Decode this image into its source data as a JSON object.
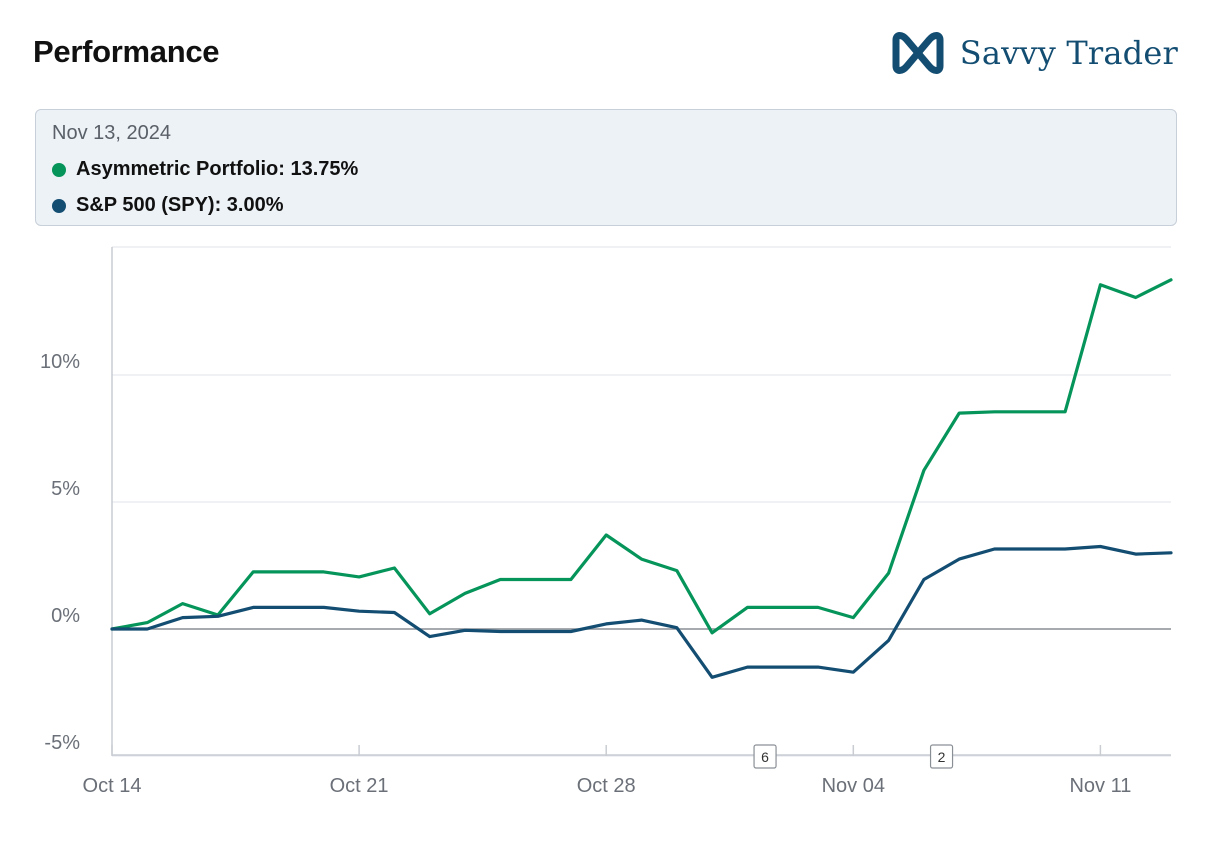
{
  "header": {
    "title": "Performance"
  },
  "brand": {
    "name": "Savvy Trader",
    "logo_icon": "savvy-trader-logo-icon",
    "color": "#134d72"
  },
  "tooltip": {
    "date": "Nov 13, 2024",
    "rows": [
      {
        "label": "Asymmetric Portfolio: 13.75%",
        "color": "#05945a"
      },
      {
        "label": "S&P 500 (SPY): 3.00%",
        "color": "#134d72"
      }
    ]
  },
  "chart_data": {
    "type": "line",
    "title": "Performance",
    "xlabel": "",
    "ylabel": "",
    "ylim": [
      -5,
      15
    ],
    "xlim": [
      0,
      30
    ],
    "y_ticks": [
      {
        "value": -5,
        "label": "-5%"
      },
      {
        "value": 0,
        "label": "0%"
      },
      {
        "value": 5,
        "label": "5%"
      },
      {
        "value": 10,
        "label": "10%"
      }
    ],
    "x_ticks": [
      {
        "value": 0,
        "label": "Oct 14"
      },
      {
        "value": 7,
        "label": "Oct 21"
      },
      {
        "value": 14,
        "label": "Oct 28"
      },
      {
        "value": 21,
        "label": "Nov 04"
      },
      {
        "value": 28,
        "label": "Nov 11"
      }
    ],
    "grid": true,
    "markers": [
      {
        "x": 18.5,
        "label": "6"
      },
      {
        "x": 23.5,
        "label": "2"
      }
    ],
    "series": [
      {
        "name": "Asymmetric Portfolio",
        "color": "#05945a",
        "x": [
          0,
          1,
          2,
          3,
          4,
          5,
          6,
          7,
          8,
          9,
          10,
          11,
          12,
          13,
          14,
          15,
          16,
          17,
          18,
          19,
          20,
          21,
          22,
          23,
          24,
          25,
          26,
          27,
          28,
          29,
          30
        ],
        "values": [
          0.0,
          0.25,
          1.0,
          0.55,
          2.25,
          2.25,
          2.25,
          2.05,
          2.4,
          0.6,
          1.4,
          1.95,
          1.95,
          1.95,
          3.7,
          2.75,
          2.3,
          -0.15,
          0.85,
          0.85,
          0.85,
          0.45,
          2.2,
          6.25,
          8.5,
          8.55,
          8.55,
          8.55,
          13.55,
          13.05,
          13.75
        ]
      },
      {
        "name": "S&P 500 (SPY)",
        "color": "#134d72",
        "x": [
          0,
          1,
          2,
          3,
          4,
          5,
          6,
          7,
          8,
          9,
          10,
          11,
          12,
          13,
          14,
          15,
          16,
          17,
          18,
          19,
          20,
          21,
          22,
          23,
          24,
          25,
          26,
          27,
          28,
          29,
          30
        ],
        "values": [
          0.0,
          0.0,
          0.45,
          0.5,
          0.85,
          0.85,
          0.85,
          0.7,
          0.65,
          -0.3,
          -0.05,
          -0.1,
          -0.1,
          -0.1,
          0.2,
          0.35,
          0.05,
          -1.9,
          -1.5,
          -1.5,
          -1.5,
          -1.7,
          -0.45,
          1.95,
          2.75,
          3.15,
          3.15,
          3.15,
          3.25,
          2.95,
          3.0
        ]
      }
    ]
  }
}
